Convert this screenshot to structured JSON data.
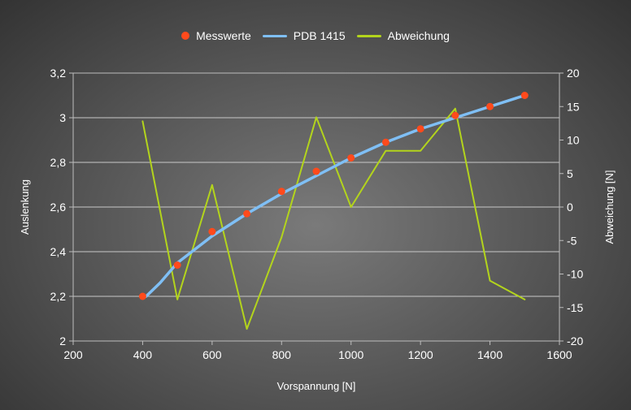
{
  "chart_data": {
    "type": "line",
    "title": "",
    "xlabel": "Vorspannung [N]",
    "ylabel_left": "Auslenkung",
    "ylabel_right": "Abweichung [N]",
    "xlim": [
      200,
      1600
    ],
    "ylim_left": [
      2,
      3.2
    ],
    "ylim_right": [
      -20,
      20
    ],
    "x_ticks": [
      200,
      400,
      600,
      800,
      1000,
      1200,
      1400,
      1600
    ],
    "x_tick_labels": [
      "200",
      "400",
      "600",
      "800",
      "1000",
      "1200",
      "1400",
      "1600"
    ],
    "y_left_ticks": [
      2,
      2.2,
      2.4,
      2.6,
      2.8,
      3,
      3.2
    ],
    "y_left_tick_labels": [
      "2",
      "2,2",
      "2,4",
      "2,6",
      "2,8",
      "3",
      "3,2"
    ],
    "y_right_ticks": [
      -20,
      -15,
      -10,
      -5,
      0,
      5,
      10,
      15,
      20
    ],
    "y_right_tick_labels": [
      "-20",
      "-15",
      "-10",
      "-5",
      "0",
      "5",
      "10",
      "15",
      "20"
    ],
    "legend_position": "top",
    "series": [
      {
        "name": "Messwerte",
        "kind": "scatter",
        "axis": "left",
        "color": "#ff4a1c",
        "x": [
          400,
          500,
          600,
          700,
          800,
          900,
          1000,
          1100,
          1200,
          1300,
          1400,
          1500
        ],
        "y": [
          2.2,
          2.34,
          2.49,
          2.57,
          2.67,
          2.76,
          2.82,
          2.89,
          2.95,
          3.01,
          3.05,
          3.1
        ]
      },
      {
        "name": "PDB 1415",
        "kind": "line",
        "axis": "left",
        "color": "#7fbff5",
        "x": [
          410,
          450,
          500,
          600,
          700,
          800,
          900,
          1000,
          1100,
          1200,
          1300,
          1400,
          1500
        ],
        "y": [
          2.2,
          2.26,
          2.35,
          2.47,
          2.57,
          2.66,
          2.74,
          2.82,
          2.89,
          2.95,
          3.0,
          3.05,
          3.1
        ]
      },
      {
        "name": "Abweichung",
        "kind": "line",
        "axis": "right",
        "color": "#b3d41c",
        "x": [
          400,
          500,
          600,
          700,
          800,
          900,
          1000,
          1100,
          1200,
          1300,
          1400,
          1500
        ],
        "y": [
          12.8,
          -13.8,
          3.3,
          -18.2,
          -4.5,
          13.4,
          0,
          8.4,
          8.4,
          14.7,
          -11,
          -13.8
        ]
      }
    ]
  }
}
